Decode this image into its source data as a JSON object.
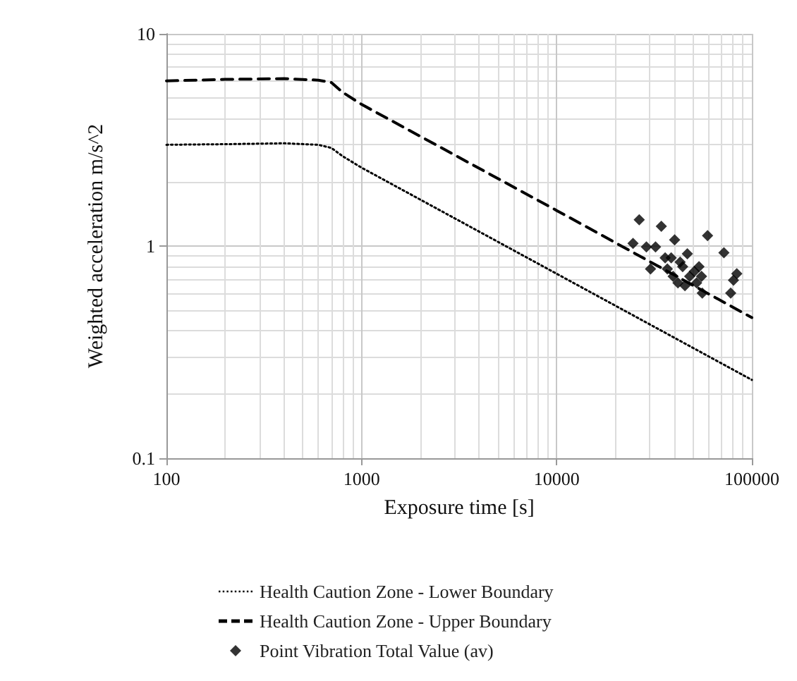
{
  "chart_data": {
    "type": "line",
    "xlabel": "Exposure time [s]",
    "ylabel": "Weighted acceleration m/s^2",
    "log": "xy",
    "grid": true,
    "legend": "bottom",
    "xlim": [
      100,
      100000
    ],
    "xticks": [
      100,
      1000,
      10000,
      100000
    ],
    "ylim": [
      0.1,
      10
    ],
    "yticks": [
      0.1,
      1,
      10
    ],
    "series": [
      {
        "name": "Health Caution Zone - Lower Boundary",
        "type": "line",
        "color": "#000000",
        "line_style": "dotted",
        "marker": "none",
        "x": [
          100,
          200,
          400,
          600,
          700,
          800,
          1000,
          10000,
          100000
        ],
        "values": [
          3,
          3.02,
          3.05,
          3,
          2.9,
          2.65,
          2.34,
          0.74,
          0.234
        ]
      },
      {
        "name": "Health Caution Zone - Upper Boundary",
        "type": "line",
        "color": "#000000",
        "line_style": "dashed",
        "marker": "none",
        "x": [
          100,
          200,
          400,
          600,
          700,
          800,
          1000,
          10000,
          100000
        ],
        "values": [
          6,
          6.1,
          6.15,
          6.05,
          5.9,
          5.3,
          4.65,
          1.47,
          0.46
        ]
      },
      {
        "name": "Point Vibration Total Value (av)",
        "type": "scatter",
        "color": "#000000",
        "marker": "diamond",
        "x": [
          26470,
          24600,
          28800,
          32100,
          34350,
          30250,
          40200,
          35950,
          46700,
          59300,
          71900,
          83700,
          80500,
          77900,
          36900,
          39500,
          41800,
          44200,
          48000,
          50700,
          53600,
          55200,
          52100,
          55700,
          45400,
          42900,
          38600
        ],
        "values": [
          1.33,
          1.03,
          0.99,
          0.99,
          1.24,
          0.78,
          1.07,
          0.88,
          0.92,
          1.12,
          0.93,
          0.74,
          0.69,
          0.6,
          0.78,
          0.72,
          0.67,
          0.8,
          0.72,
          0.76,
          0.8,
          0.72,
          0.67,
          0.6,
          0.65,
          0.84,
          0.88
        ]
      }
    ]
  }
}
